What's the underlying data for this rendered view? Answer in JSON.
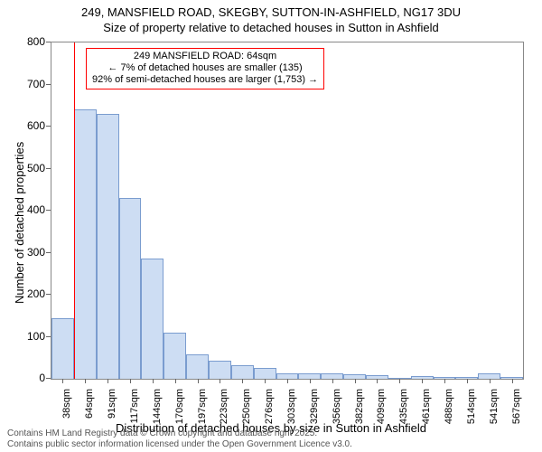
{
  "title_line1": "249, MANSFIELD ROAD, SKEGBY, SUTTON-IN-ASHFIELD, NG17 3DU",
  "title_line2": "Size of property relative to detached houses in Sutton in Ashfield",
  "y_axis_label": "Number of detached properties",
  "x_axis_label": "Distribution of detached houses by size in Sutton in Ashfield",
  "chart": {
    "type": "histogram",
    "ylim": [
      0,
      800
    ],
    "ytick_step": 100,
    "bar_fill": "#cdddf3",
    "bar_stroke": "#7a9ccf",
    "background_color": "#ffffff",
    "border_color": "#888888",
    "reference_line_x": 64,
    "reference_line_color": "#ff0000",
    "x_categories": [
      "38sqm",
      "64sqm",
      "91sqm",
      "117sqm",
      "144sqm",
      "170sqm",
      "197sqm",
      "223sqm",
      "250sqm",
      "276sqm",
      "303sqm",
      "329sqm",
      "356sqm",
      "382sqm",
      "409sqm",
      "435sqm",
      "461sqm",
      "488sqm",
      "514sqm",
      "541sqm",
      "567sqm"
    ],
    "values": [
      145,
      640,
      630,
      430,
      285,
      110,
      58,
      42,
      32,
      26,
      14,
      12,
      14,
      10,
      8,
      2,
      6,
      4,
      4,
      14,
      4
    ]
  },
  "info_box": {
    "line1": "249 MANSFIELD ROAD: 64sqm",
    "line2": "← 7% of detached houses are smaller (135)",
    "line3": "92% of semi-detached houses are larger (1,753) →"
  },
  "footer_line1": "Contains HM Land Registry data © Crown copyright and database right 2025.",
  "footer_line2": "Contains public sector information licensed under the Open Government Licence v3.0."
}
